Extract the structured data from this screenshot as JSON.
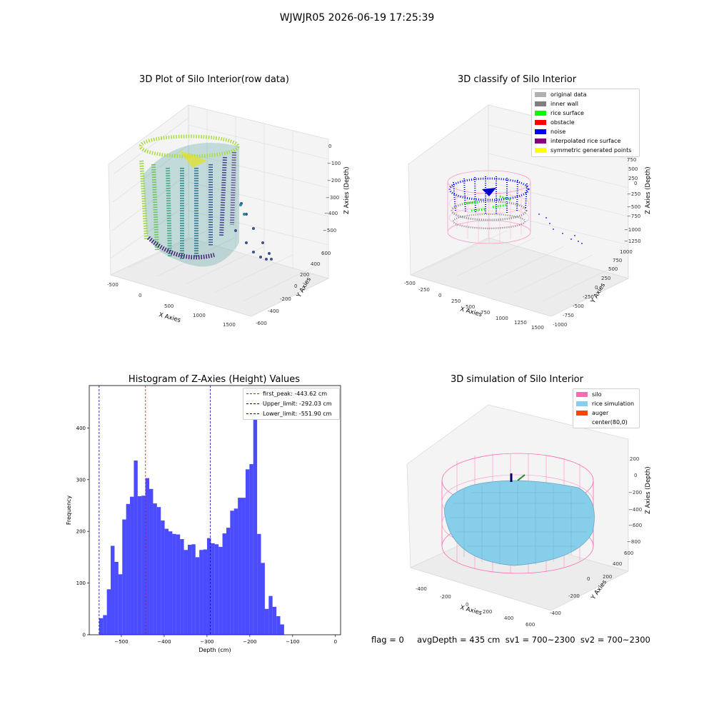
{
  "figure": {
    "suptitle": "WJWJR05 2026-06-19 17:25:39",
    "footer": "flag = 0     avgDepth = 435 cm  sv1 = 700~2300  sv2 = 700~2300"
  },
  "panels": {
    "raw": {
      "title": "3D Plot of Silo Interior(row data)",
      "xlabel": "X Axies",
      "ylabel": "Y Axies",
      "zlabel": "Z Axies (Depth)",
      "xticks": [
        "-500",
        "0",
        "500",
        "1000",
        "1500"
      ],
      "yticks": [
        "-600",
        "-400",
        "-200",
        "0",
        "200",
        "400",
        "600"
      ],
      "zticks": [
        "0",
        "−100",
        "−200",
        "−300",
        "−400",
        "−500"
      ]
    },
    "classify": {
      "title": "3D classify of Silo Interior",
      "xlabel": "X Axies",
      "ylabel": "Y Axies",
      "zlabel": "Z Axies (Depth)",
      "xticks": [
        "-500",
        "-250",
        "0",
        "250",
        "500",
        "750",
        "1000",
        "1250",
        "1500"
      ],
      "yticks": [
        "-1000",
        "-750",
        "-500",
        "-250",
        "0",
        "250",
        "500",
        "750",
        "1000"
      ],
      "zticks": [
        "1000",
        "750",
        "500",
        "250",
        "0",
        "−250",
        "−500",
        "−750",
        "−1000",
        "−1250"
      ],
      "legend": [
        {
          "label": "original data",
          "color": "#b0b0b0"
        },
        {
          "label": "inner wall",
          "color": "#808080"
        },
        {
          "label": "rice surface",
          "color": "#00ff00"
        },
        {
          "label": "obstacle",
          "color": "#ff0000"
        },
        {
          "label": "noise",
          "color": "#0000ff"
        },
        {
          "label": "interpolated rice surface",
          "color": "#800080"
        },
        {
          "label": "symmetric generated points",
          "color": "#ffff00"
        }
      ]
    },
    "simulation": {
      "title": "3D simulation of Silo Interior",
      "xlabel": "X Axies",
      "ylabel": "Y Axies",
      "zlabel": "Z Axies (Depth)",
      "xticks": [
        "-400",
        "-200",
        "0",
        "200",
        "400",
        "600"
      ],
      "yticks": [
        "-400",
        "-200",
        "0",
        "200",
        "400",
        "600"
      ],
      "zticks": [
        "200",
        "0",
        "−200",
        "−400",
        "−600",
        "−800"
      ],
      "legend": [
        {
          "label": "silo",
          "color": "#ff69b4"
        },
        {
          "label": "rice simulation",
          "color": "#87ceeb"
        },
        {
          "label": "auger",
          "color": "#ff4500"
        },
        {
          "label": "center(80,0)",
          "color": ""
        }
      ]
    }
  },
  "chart_data": {
    "type": "bar",
    "title": "Histogram of Z-Axies (Height) Values",
    "xlabel": "Depth (cm)",
    "ylabel": "Frequency",
    "xlim": [
      -575,
      12
    ],
    "ylim": [
      0,
      482
    ],
    "xticks": [
      -500,
      -400,
      -300,
      -200,
      -100,
      0
    ],
    "xtick_labels": [
      "−500",
      "−400",
      "−300",
      "−200",
      "−100",
      "0"
    ],
    "yticks": [
      0,
      100,
      200,
      300,
      400
    ],
    "bar_color": "#0000ff",
    "bin_start": -551.9,
    "bin_width": 9.0,
    "values": [
      32,
      38,
      88,
      172,
      141,
      117,
      223,
      253,
      267,
      337,
      268,
      269,
      303,
      282,
      254,
      247,
      221,
      205,
      200,
      195,
      194,
      185,
      164,
      174,
      175,
      150,
      164,
      165,
      187,
      177,
      175,
      170,
      196,
      207,
      240,
      244,
      265,
      265,
      320,
      330,
      455,
      195,
      139,
      50,
      75,
      54,
      36,
      20
    ],
    "vlines": [
      {
        "label": "first_peak: -443.62 cm",
        "x": -443.62,
        "color": "#ff0000"
      },
      {
        "label": "Upper_limit: -292.03 cm",
        "x": -292.03,
        "color": "#0000aa"
      },
      {
        "label": "Lower_limit: -551.90 cm",
        "x": -551.9,
        "color": "#0000aa"
      }
    ]
  }
}
